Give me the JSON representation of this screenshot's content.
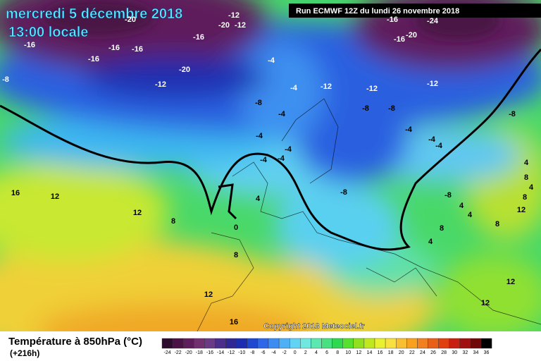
{
  "header": {
    "date": "mercredi 5 décembre 2018",
    "time": "13:00 locale",
    "run": "Run ECMWF 12Z du lundi 26 novembre 2018",
    "copyright": "Copyright 2018 Meteociel.fr"
  },
  "legend": {
    "title": "Température à 850hPa (°C)",
    "lead": "(+216h)",
    "ticks": [
      -24,
      -22,
      -20,
      -18,
      -16,
      -14,
      -12,
      -10,
      -8,
      -6,
      -4,
      -2,
      0,
      2,
      4,
      6,
      8,
      10,
      12,
      14,
      16,
      18,
      20,
      22,
      24,
      26,
      28,
      30,
      32,
      34,
      36
    ],
    "colors": [
      "#2e0c2e",
      "#4a1245",
      "#5e1e5b",
      "#723070",
      "#6a3a85",
      "#4b2d8c",
      "#2f2894",
      "#1c2db0",
      "#1f48d0",
      "#2e68e8",
      "#3c8cf2",
      "#4fb0f5",
      "#62d2f5",
      "#70e8e0",
      "#5de8b0",
      "#48e080",
      "#30d850",
      "#58e030",
      "#90e020",
      "#c0e820",
      "#e8f030",
      "#f8e040",
      "#f8c030",
      "#f8a020",
      "#f08020",
      "#e86018",
      "#e04010",
      "#c82010",
      "#a01010",
      "#700808",
      "#000000"
    ]
  },
  "labels": [
    -20,
    -12,
    -20,
    -12,
    -16,
    -16,
    -16,
    -16,
    -16,
    -20,
    -8,
    -4,
    -12,
    -4,
    -12,
    -12,
    -12,
    -16,
    -20,
    -16,
    -24,
    -8,
    -4,
    -8,
    -8,
    -4,
    -4,
    -4,
    -4,
    -4,
    -8,
    -4,
    -4,
    16,
    12,
    12,
    8,
    4,
    0,
    -8,
    -8,
    4,
    4,
    8,
    12,
    8,
    4,
    8,
    12,
    16,
    12,
    12,
    4,
    8,
    8,
    4
  ]
}
